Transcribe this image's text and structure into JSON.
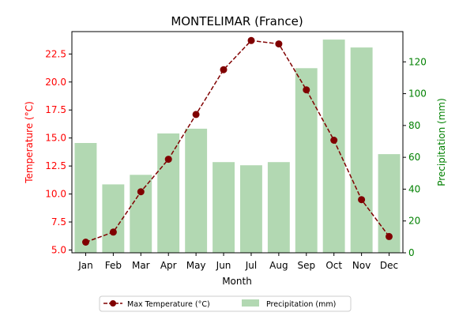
{
  "chart_data": {
    "type": "bar+line",
    "title": "MONTELIMAR (France)",
    "xlabel": "Month",
    "categories": [
      "Jan",
      "Feb",
      "Mar",
      "Apr",
      "May",
      "Jun",
      "Jul",
      "Aug",
      "Sep",
      "Oct",
      "Nov",
      "Dec"
    ],
    "left_axis": {
      "label": "Temperature (°C)",
      "color": "#ff0000",
      "ylim": [
        4.75,
        24.5
      ],
      "ticks": [
        "5.0",
        "7.5",
        "10.0",
        "12.5",
        "15.0",
        "17.5",
        "20.0",
        "22.5"
      ]
    },
    "right_axis": {
      "label": "Precipitation (mm)",
      "color": "#008000",
      "ylim": [
        0,
        139
      ],
      "ticks": [
        "0",
        "20",
        "40",
        "60",
        "80",
        "100",
        "120"
      ]
    },
    "series": [
      {
        "name": "Max Temperature (°C)",
        "type": "line",
        "axis": "left",
        "color": "#800000",
        "values": [
          5.7,
          6.6,
          10.2,
          13.1,
          17.1,
          21.1,
          23.7,
          23.4,
          19.3,
          14.8,
          9.5,
          6.2
        ]
      },
      {
        "name": "Precipitation (mm)",
        "type": "bar",
        "axis": "right",
        "color": "#b2d8b2",
        "values": [
          69,
          43,
          49,
          75,
          78,
          57,
          55,
          57,
          116,
          134,
          129,
          62
        ]
      }
    ],
    "legend_position": "bottom-center",
    "grid": false
  }
}
